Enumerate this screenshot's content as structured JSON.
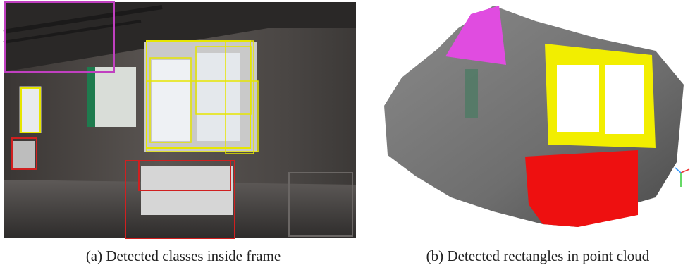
{
  "figure": {
    "panels": [
      {
        "caption": "(a) Detected classes inside frame"
      },
      {
        "caption": "(b) Detected rectangles in point cloud"
      }
    ]
  }
}
